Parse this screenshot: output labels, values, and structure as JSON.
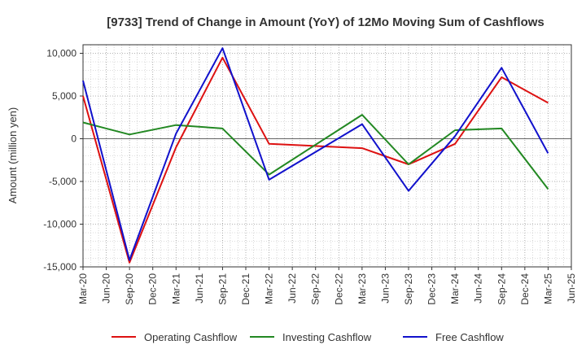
{
  "chart_data": {
    "type": "line",
    "title": "[9733]  Trend of Change in Amount (YoY) of 12Mo Moving Sum of Cashflows",
    "ylabel": "Amount (million yen)",
    "xlabel": "",
    "ylim": [
      -15000,
      11000
    ],
    "yticks": [
      10000,
      5000,
      0,
      -5000,
      -10000,
      -15000
    ],
    "ytick_labels": [
      "10,000",
      "5,000",
      "0",
      "-5,000",
      "-10,000",
      "-15,000"
    ],
    "categories": [
      "Mar-20",
      "Jun-20",
      "Sep-20",
      "Dec-20",
      "Mar-21",
      "Jun-21",
      "Sep-21",
      "Dec-21",
      "Mar-22",
      "Jun-22",
      "Sep-22",
      "Dec-22",
      "Mar-23",
      "Jun-23",
      "Sep-23",
      "Dec-23",
      "Mar-24",
      "Jun-24",
      "Sep-24",
      "Dec-24",
      "Mar-25",
      "Jun-25"
    ],
    "grid": true,
    "legend_position": "bottom",
    "series": [
      {
        "name": "Operating Cashflow",
        "color": "#dd1111",
        "values": [
          5000,
          null,
          -14500,
          null,
          -1000,
          null,
          9500,
          null,
          -600,
          null,
          null,
          null,
          -1100,
          null,
          -3000,
          null,
          -600,
          null,
          7200,
          null,
          4200,
          null
        ]
      },
      {
        "name": "Investing Cashflow",
        "color": "#228822",
        "values": [
          1900,
          null,
          500,
          null,
          1600,
          null,
          1200,
          null,
          -4200,
          null,
          null,
          null,
          2800,
          null,
          -3000,
          null,
          1000,
          null,
          1200,
          null,
          -5900,
          null
        ]
      },
      {
        "name": "Free Cashflow",
        "color": "#1111cc",
        "values": [
          6800,
          null,
          -14200,
          null,
          600,
          null,
          10600,
          null,
          -4800,
          null,
          null,
          null,
          1700,
          null,
          -6100,
          null,
          300,
          null,
          8300,
          null,
          -1700,
          null
        ]
      }
    ]
  }
}
